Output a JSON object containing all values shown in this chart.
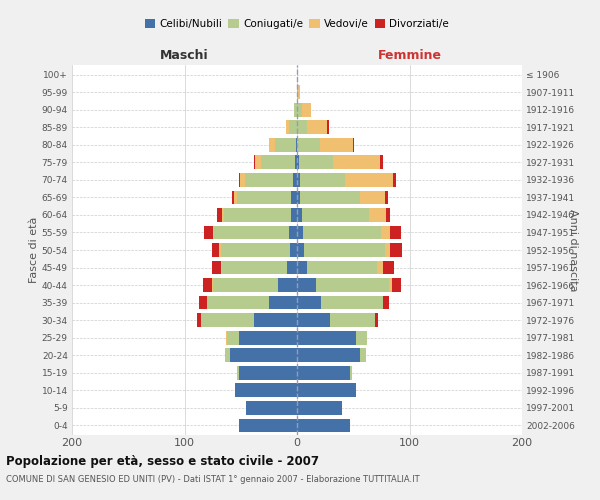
{
  "age_groups": [
    "0-4",
    "5-9",
    "10-14",
    "15-19",
    "20-24",
    "25-29",
    "30-34",
    "35-39",
    "40-44",
    "45-49",
    "50-54",
    "55-59",
    "60-64",
    "65-69",
    "70-74",
    "75-79",
    "80-84",
    "85-89",
    "90-94",
    "95-99",
    "100+"
  ],
  "birth_years": [
    "2002-2006",
    "1997-2001",
    "1992-1996",
    "1987-1991",
    "1982-1986",
    "1977-1981",
    "1972-1976",
    "1967-1971",
    "1962-1966",
    "1957-1961",
    "1952-1956",
    "1947-1951",
    "1942-1946",
    "1937-1941",
    "1932-1936",
    "1927-1931",
    "1922-1926",
    "1917-1921",
    "1912-1916",
    "1907-1911",
    "≤ 1906"
  ],
  "maschi": {
    "celibi": [
      52,
      45,
      55,
      52,
      60,
      52,
      38,
      25,
      17,
      9,
      6,
      7,
      5,
      5,
      4,
      2,
      1,
      0,
      0,
      0,
      0
    ],
    "coniugati": [
      0,
      0,
      0,
      1,
      4,
      10,
      47,
      55,
      58,
      58,
      62,
      67,
      60,
      48,
      42,
      30,
      19,
      7,
      3,
      0,
      0
    ],
    "vedovi": [
      0,
      0,
      0,
      0,
      0,
      1,
      0,
      0,
      1,
      1,
      1,
      1,
      2,
      3,
      5,
      5,
      5,
      3,
      0,
      0,
      0
    ],
    "divorziati": [
      0,
      0,
      0,
      0,
      0,
      0,
      4,
      7,
      8,
      8,
      7,
      8,
      4,
      2,
      1,
      1,
      0,
      0,
      0,
      0,
      0
    ]
  },
  "femmine": {
    "nubili": [
      47,
      40,
      52,
      47,
      56,
      52,
      29,
      21,
      17,
      9,
      6,
      5,
      4,
      3,
      3,
      2,
      0,
      0,
      0,
      0,
      0
    ],
    "coniugate": [
      0,
      0,
      0,
      2,
      5,
      10,
      40,
      55,
      65,
      62,
      72,
      70,
      60,
      53,
      40,
      30,
      20,
      9,
      4,
      1,
      0
    ],
    "vedove": [
      0,
      0,
      0,
      0,
      0,
      0,
      0,
      0,
      2,
      5,
      5,
      8,
      15,
      22,
      42,
      42,
      30,
      18,
      8,
      2,
      0
    ],
    "divorziate": [
      0,
      0,
      0,
      0,
      0,
      0,
      3,
      6,
      8,
      10,
      10,
      9,
      4,
      3,
      3,
      2,
      1,
      1,
      0,
      0,
      0
    ]
  },
  "colors": {
    "celibi_nubili": "#4472a8",
    "coniugati_e": "#b5cc8e",
    "vedovi_e": "#f0c070",
    "divorziati_e": "#cc2222"
  },
  "legend_labels": [
    "Celibi/Nubili",
    "Coniugati/e",
    "Vedovi/e",
    "Divorziati/e"
  ],
  "title": "Popolazione per età, sesso e stato civile - 2007",
  "subtitle": "COMUNE DI SAN GENESIO ED UNITI (PV) - Dati ISTAT 1° gennaio 2007 - Elaborazione TUTTITALIA.IT",
  "xlabel_left": "Maschi",
  "xlabel_right": "Femmine",
  "ylabel_left": "Fasce di età",
  "ylabel_right": "Anni di nascita",
  "xlim": 200,
  "bg_color": "#f0f0f0",
  "plot_bg_color": "#ffffff",
  "grid_color": "#cccccc"
}
